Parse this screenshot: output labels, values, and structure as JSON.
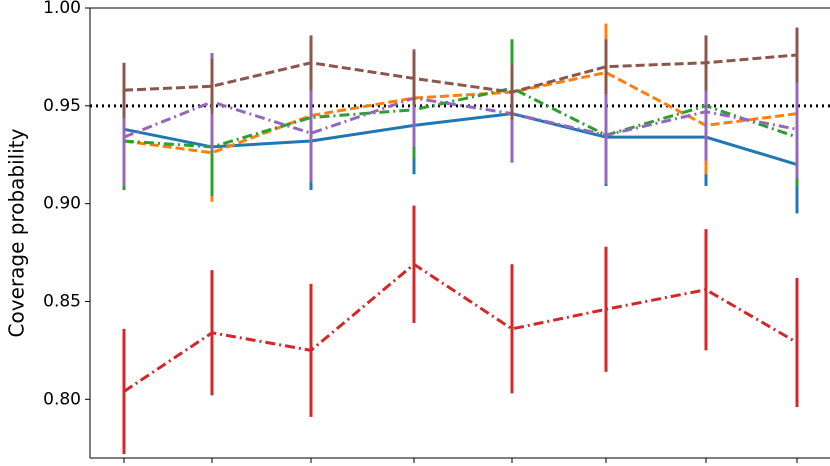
{
  "chart_data": {
    "type": "errorline",
    "y_label": "Coverage probability",
    "categories": [
      null,
      null,
      null,
      null,
      null,
      null,
      null,
      null
    ],
    "ylim": [
      0.77,
      1.0
    ],
    "yticks": [
      {
        "value": 0.8,
        "label": "0.80"
      },
      {
        "value": 0.85,
        "label": "0.85"
      },
      {
        "value": 0.9,
        "label": "0.90"
      },
      {
        "value": 0.95,
        "label": "0.95"
      },
      {
        "value": 1.0,
        "label": "1.00"
      }
    ],
    "reference_line": 0.95,
    "series": [
      {
        "color": "#1f77b4",
        "dash": "solid",
        "values": [
          0.938,
          0.929,
          0.932,
          0.94,
          0.946,
          0.934,
          0.934,
          0.92
        ],
        "errors": [
          0.025,
          0.025,
          0.025,
          0.025,
          0.025,
          0.025,
          0.025,
          0.025
        ]
      },
      {
        "color": "#ff7f0e",
        "dash": "dashed",
        "values": [
          0.932,
          0.926,
          0.945,
          0.954,
          0.957,
          0.967,
          0.94,
          0.946
        ],
        "errors": [
          0.025,
          0.025,
          0.025,
          0.025,
          0.025,
          0.025,
          0.025,
          0.025
        ]
      },
      {
        "color": "#2ca02c",
        "dash": "dashdot",
        "values": [
          0.932,
          0.929,
          0.944,
          0.948,
          0.959,
          0.935,
          0.95,
          0.934
        ],
        "errors": [
          0.025,
          0.025,
          0.025,
          0.025,
          0.025,
          0.025,
          0.025,
          0.025
        ]
      },
      {
        "color": "#d62728",
        "dash": "dashdot",
        "values": [
          0.804,
          0.834,
          0.825,
          0.869,
          0.836,
          0.846,
          0.856,
          0.829
        ],
        "errors": [
          0.032,
          0.032,
          0.034,
          0.03,
          0.033,
          0.032,
          0.031,
          0.033
        ]
      },
      {
        "color": "#9467bd",
        "dash": "dashdot",
        "values": [
          0.934,
          0.952,
          0.936,
          0.954,
          0.946,
          0.935,
          0.947,
          0.938
        ],
        "errors": [
          0.025,
          0.025,
          0.025,
          0.025,
          0.025,
          0.025,
          0.025,
          0.025
        ]
      },
      {
        "color": "#8c564b",
        "dash": "dashed",
        "values": [
          0.958,
          0.96,
          0.972,
          0.964,
          0.957,
          0.97,
          0.972,
          0.976
        ],
        "errors": [
          0.014,
          0.014,
          0.014,
          0.014,
          0.014,
          0.014,
          0.014,
          0.014
        ]
      }
    ]
  }
}
